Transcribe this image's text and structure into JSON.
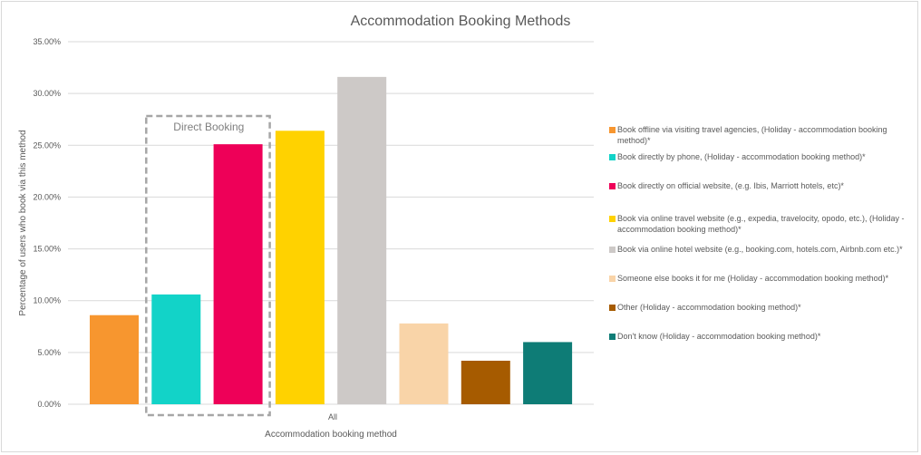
{
  "chart_data": {
    "type": "bar",
    "title": "Accommodation Booking Methods",
    "xlabel": "Accommodation booking method",
    "ylabel": "Percentage of users who book via this method",
    "categories": [
      "All"
    ],
    "ylim": [
      0,
      35
    ],
    "yticks": [
      "0.00%",
      "5.00%",
      "10.00%",
      "15.00%",
      "20.00%",
      "25.00%",
      "30.00%",
      "35.00%"
    ],
    "grid": true,
    "legend_position": "right",
    "series": [
      {
        "name": "Book offline via visiting travel agencies, (Holiday - accommodation booking method)*",
        "values": [
          8.6
        ],
        "color": "#F7962F"
      },
      {
        "name": "Book directly by phone, (Holiday - accommodation booking method)*",
        "values": [
          10.6
        ],
        "color": "#12D3C8"
      },
      {
        "name": "Book directly on official website, (e.g. Ibis, Marriott hotels, etc)*",
        "values": [
          25.1
        ],
        "color": "#EE0058"
      },
      {
        "name": "Book via online travel website (e.g., expedia, travelocity, opodo, etc.), (Holiday - accommodation booking method)*",
        "values": [
          26.4
        ],
        "color": "#FFD200"
      },
      {
        "name": "Book via online hotel website (e.g., booking.com, hotels.com, Airbnb.com etc.)*",
        "values": [
          31.6
        ],
        "color": "#CDC9C7"
      },
      {
        "name": "Someone else books it for me (Holiday - accommodation booking method)*",
        "values": [
          7.8
        ],
        "color": "#F9D4A8"
      },
      {
        "name": "Other (Holiday - accommodation booking method)*",
        "values": [
          4.2
        ],
        "color": "#A65B00"
      },
      {
        "name": "Don't know (Holiday - accommodation booking method)*",
        "values": [
          6.0
        ],
        "color": "#0E7C76"
      }
    ],
    "annotation": {
      "label": "Direct Booking",
      "series_covered": [
        1,
        2
      ]
    }
  }
}
